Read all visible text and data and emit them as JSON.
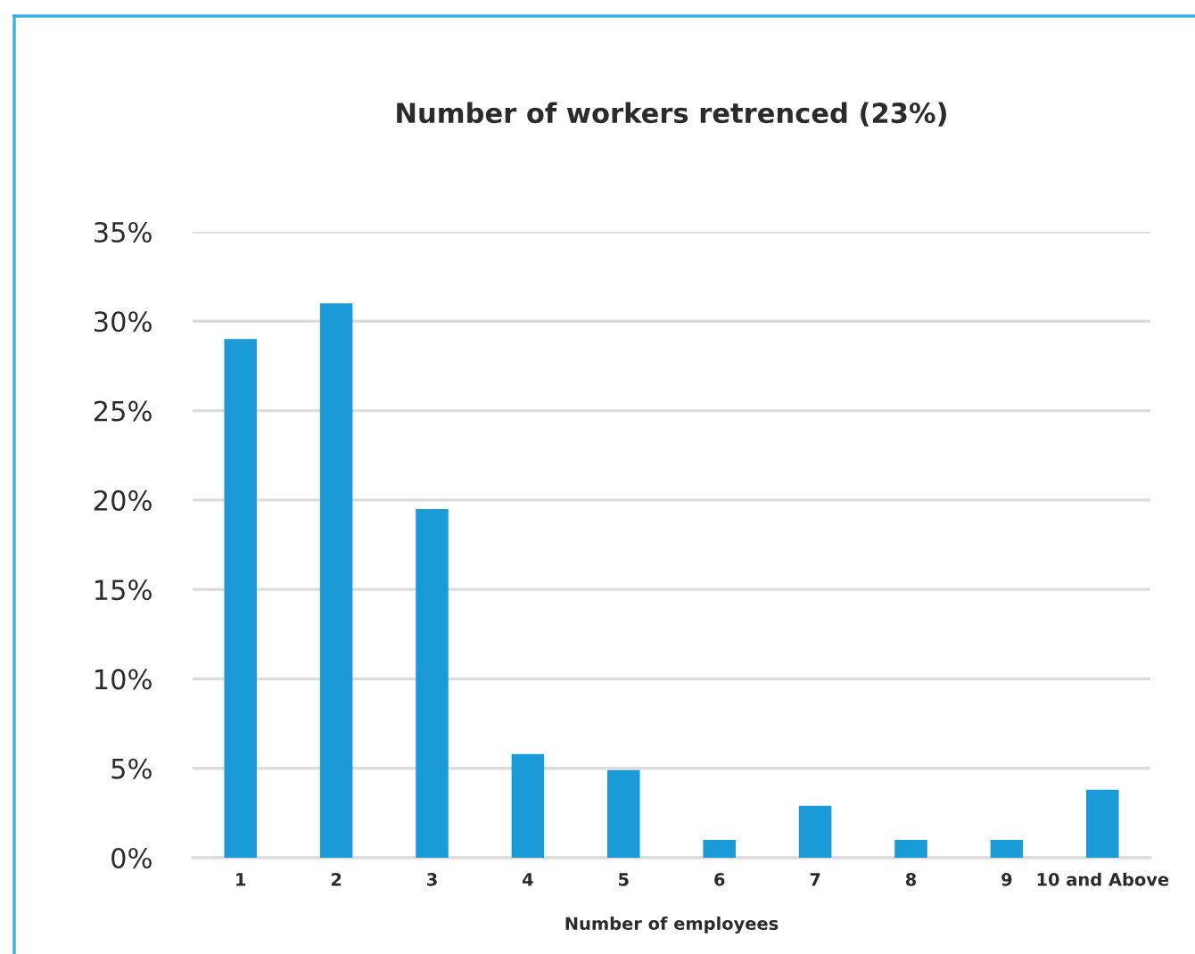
{
  "chart_data": {
    "type": "bar",
    "title": "Number of workers retrenced (23%)",
    "xlabel": "Number of employees",
    "categories": [
      "1",
      "2",
      "3",
      "4",
      "5",
      "6",
      "7",
      "8",
      "9",
      "10 and Above"
    ],
    "values": [
      29.0,
      31.0,
      19.5,
      5.8,
      4.9,
      1.0,
      2.9,
      1.0,
      1.0,
      3.8
    ],
    "color": "#1a9ad6",
    "ylim": [
      0,
      35
    ],
    "yticks": [
      {
        "value": 0,
        "label": "0%"
      },
      {
        "value": 5,
        "label": "5%"
      },
      {
        "value": 10,
        "label": "10%"
      },
      {
        "value": 15,
        "label": "15%"
      },
      {
        "value": 20,
        "label": "20%"
      },
      {
        "value": 25,
        "label": "25%"
      },
      {
        "value": 30,
        "label": "30%"
      },
      {
        "value": 35,
        "label": "35%"
      }
    ],
    "grid": "y"
  }
}
